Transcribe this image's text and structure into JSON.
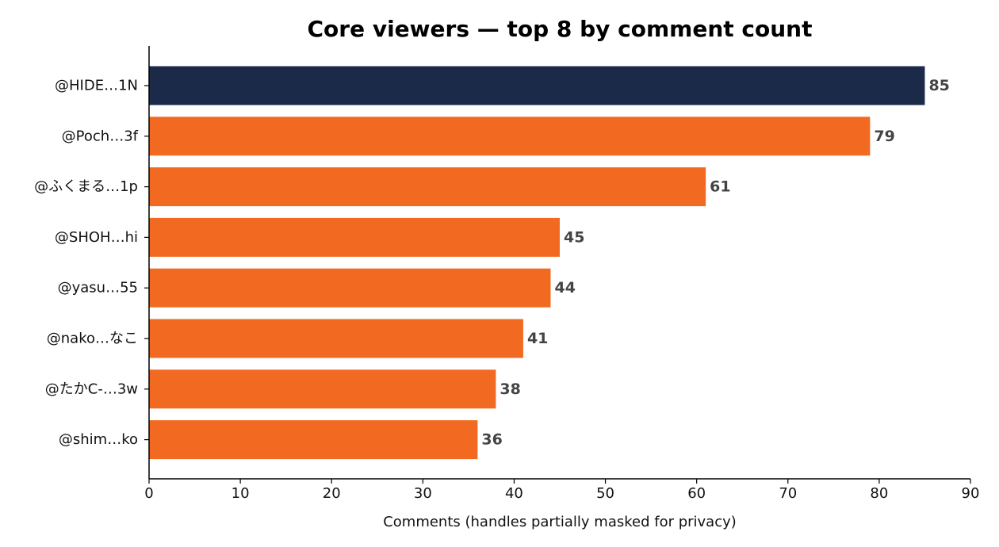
{
  "chart_data": {
    "type": "bar",
    "orientation": "horizontal",
    "title": "Core viewers — top 8 by comment count",
    "xlabel": "Comments (handles partially masked for privacy)",
    "ylabel": "",
    "categories": [
      "@HIDE…1N",
      "@Poch…3f",
      "@ふくまる…1p",
      "@SHOH…hi",
      "@yasu…55",
      "@nako…なこ",
      "@たかC-…3w",
      "@shim…ko"
    ],
    "values": [
      85,
      79,
      61,
      45,
      44,
      41,
      38,
      36
    ],
    "value_labels": [
      "85",
      "79",
      "61",
      "45",
      "44",
      "41",
      "38",
      "36"
    ],
    "xlim": [
      0,
      90
    ],
    "xticks": [
      0,
      10,
      20,
      30,
      40,
      50,
      60,
      70,
      80,
      90
    ],
    "xtick_labels": [
      "0",
      "10",
      "20",
      "30",
      "40",
      "50",
      "60",
      "70",
      "80",
      "90"
    ],
    "grid": false,
    "legend": "none",
    "highlight_index": 0,
    "colors": {
      "highlight": "#1c2a4a",
      "default": "#f26a21",
      "value_label": "#444444",
      "axis": "#000000"
    }
  }
}
